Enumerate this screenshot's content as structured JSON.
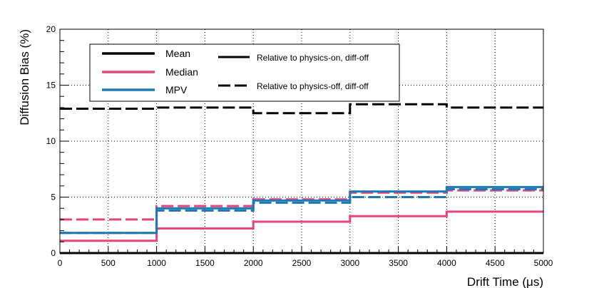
{
  "chart_data": {
    "type": "line",
    "xlabel": "Drift Time (μs)",
    "ylabel": "Diffusion Bias (%)",
    "xlim": [
      0,
      5000
    ],
    "ylim": [
      0,
      20
    ],
    "x_ticks": [
      "0",
      "500",
      "1000",
      "1500",
      "2000",
      "2500",
      "3000",
      "3500",
      "4000",
      "4500",
      "5000"
    ],
    "y_ticks": [
      "0",
      "5",
      "10",
      "15",
      "20"
    ],
    "grid": true,
    "bin_edges": [
      0,
      1000,
      2000,
      3000,
      4000,
      5000
    ],
    "legend": {
      "placement": "top-left",
      "stats": [
        {
          "label": "Mean",
          "color": "#000000"
        },
        {
          "label": "Median",
          "color": "#e8437a"
        },
        {
          "label": "MPV",
          "color": "#1f78b4"
        }
      ],
      "styles": [
        {
          "label": "Relative to physics-on, diff-off",
          "dash": "solid"
        },
        {
          "label": "Relative to physics-off, diff-off",
          "dash": "dashed"
        }
      ]
    },
    "series": [
      {
        "stat": "Mean",
        "reference": "Relative to physics-on, diff-off",
        "color": "#000000",
        "dash": "solid",
        "values": [
          0.0,
          0.0,
          0.0,
          0.0,
          0.0
        ]
      },
      {
        "stat": "Mean",
        "reference": "Relative to physics-off, diff-off",
        "color": "#000000",
        "dash": "dashed",
        "values": [
          12.9,
          13.0,
          12.5,
          13.3,
          13.0
        ]
      },
      {
        "stat": "Median",
        "reference": "Relative to physics-on, diff-off",
        "color": "#e8437a",
        "dash": "solid",
        "values": [
          1.1,
          2.2,
          2.8,
          3.3,
          3.7
        ]
      },
      {
        "stat": "Median",
        "reference": "Relative to physics-off, diff-off",
        "color": "#e8437a",
        "dash": "dashed",
        "values": [
          3.0,
          4.2,
          4.8,
          5.4,
          5.6
        ]
      },
      {
        "stat": "MPV",
        "reference": "Relative to physics-on, diff-off",
        "color": "#1f78b4",
        "dash": "solid",
        "values": [
          1.8,
          4.0,
          4.7,
          5.5,
          5.9
        ]
      },
      {
        "stat": "MPV",
        "reference": "Relative to physics-off, diff-off",
        "color": "#1f78b4",
        "dash": "dashed",
        "values": [
          1.8,
          3.8,
          4.5,
          5.0,
          5.7
        ]
      }
    ]
  }
}
